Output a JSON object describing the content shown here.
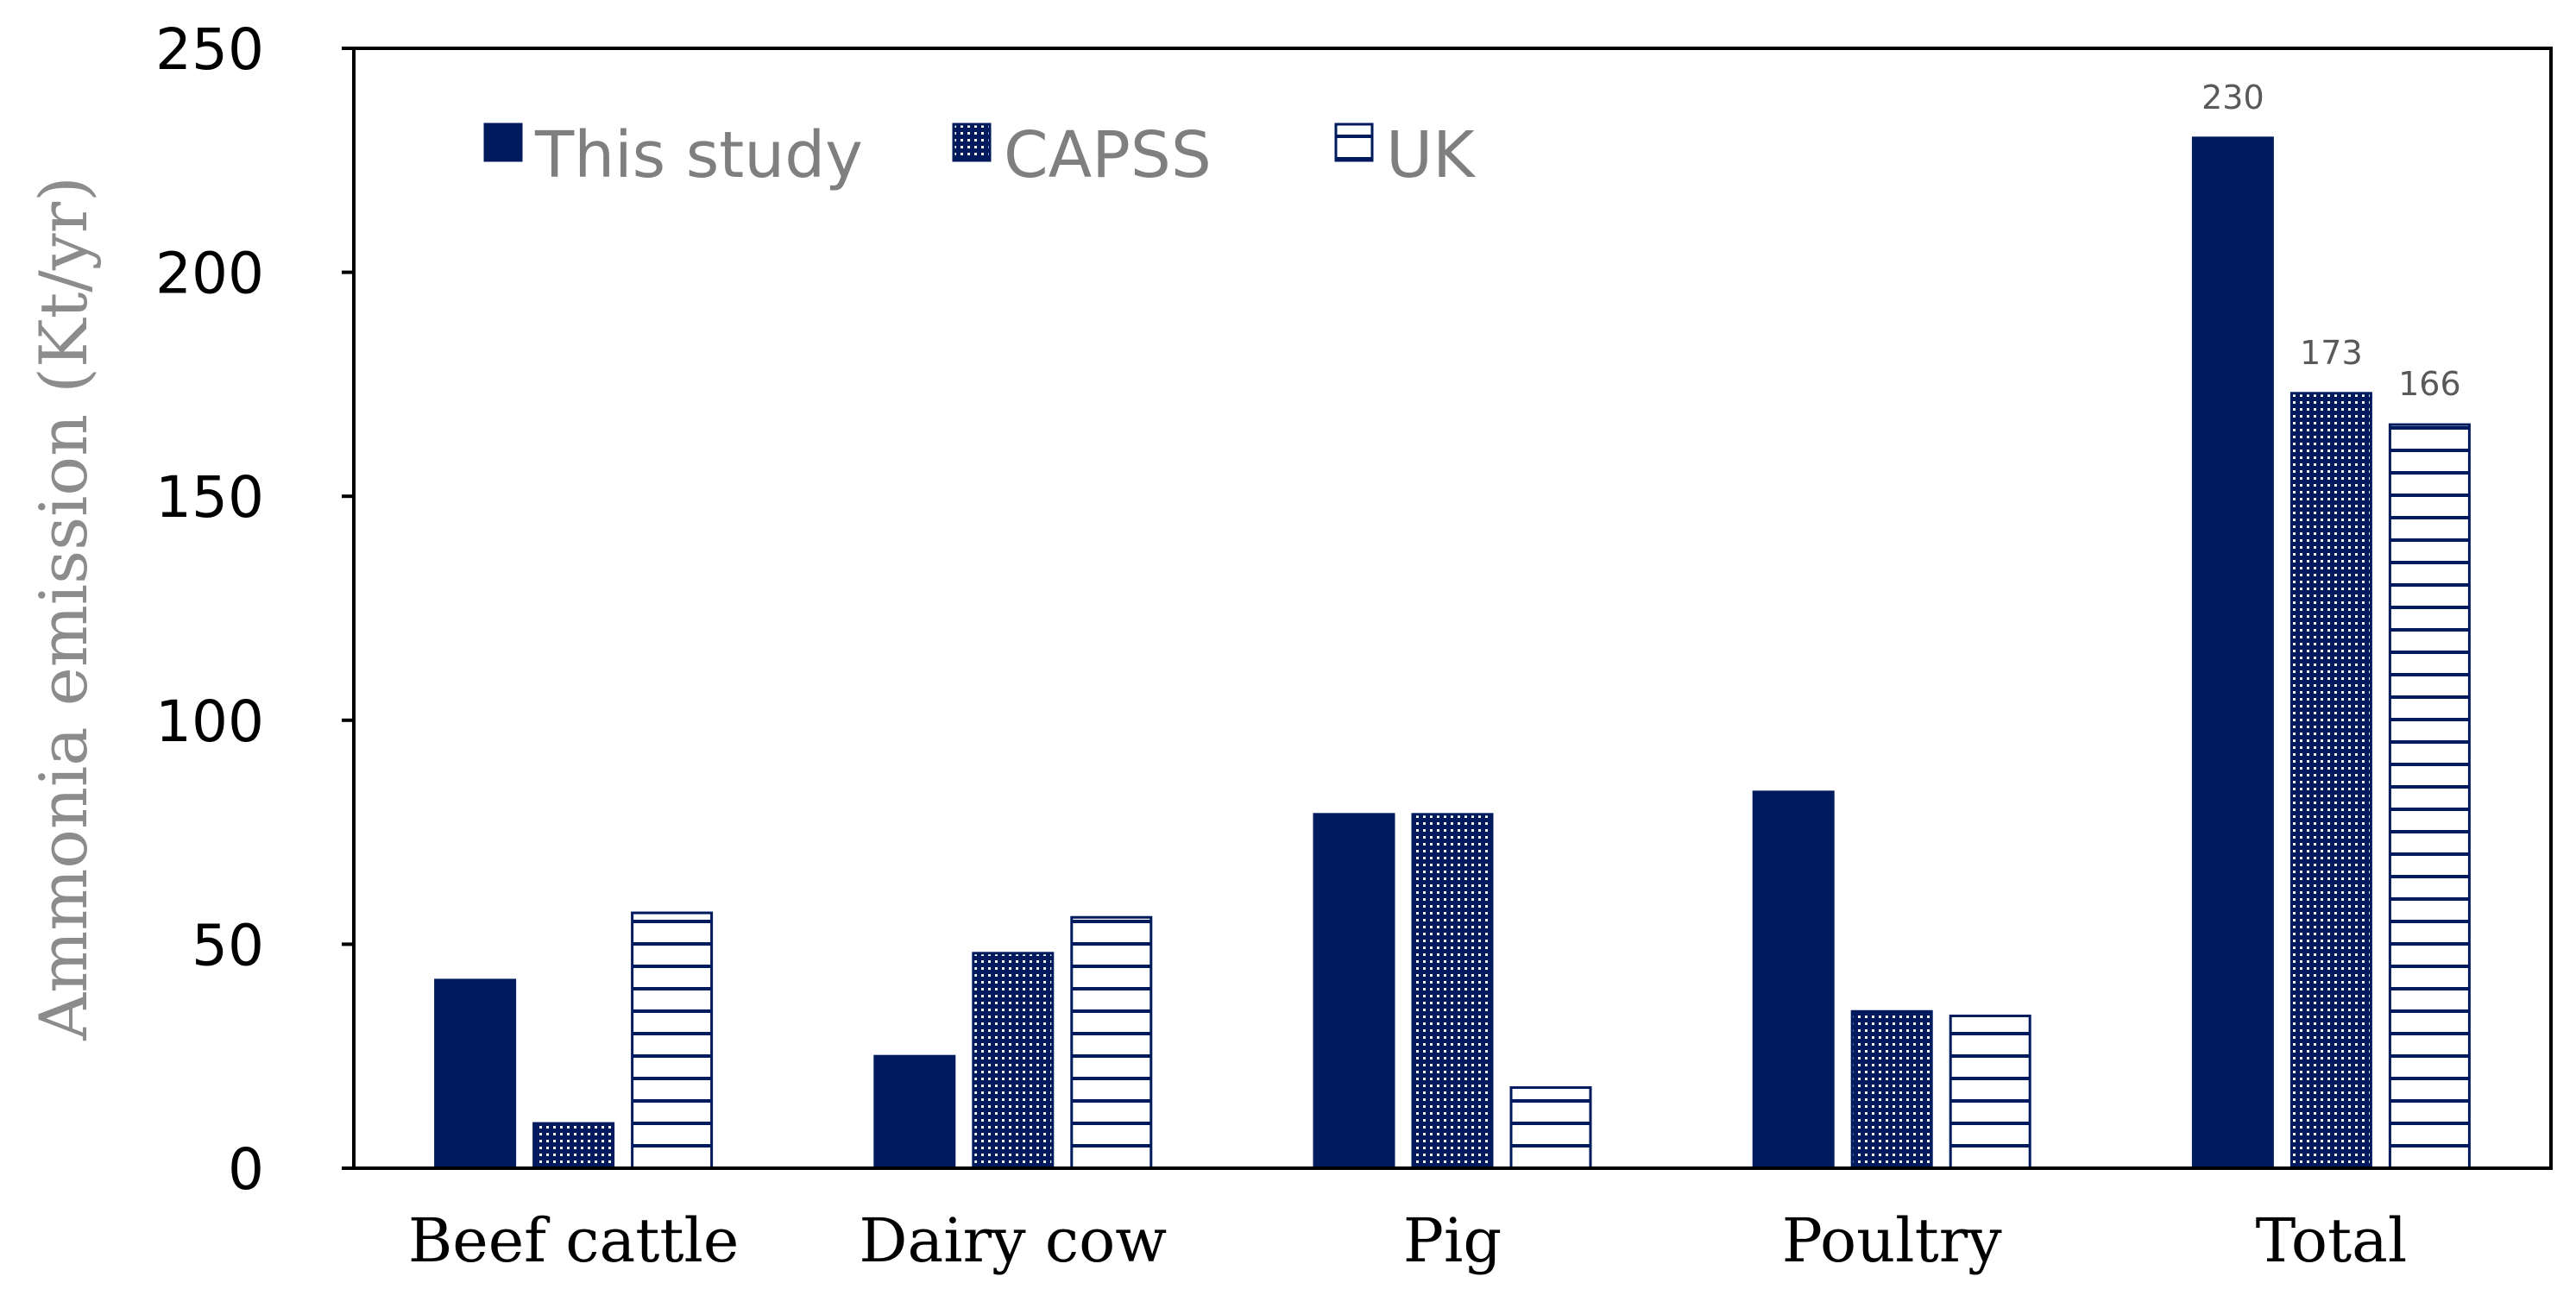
{
  "chart_data": {
    "type": "bar",
    "title": "",
    "xlabel": "",
    "ylabel": "Ammonia emission (Kt/yr)",
    "ylim": [
      0,
      250
    ],
    "yticks": [
      "0",
      "50",
      "100",
      "150",
      "200",
      "250"
    ],
    "categories": [
      "Beef cattle",
      "Dairy cow",
      "Pig",
      "Poultry",
      "Total"
    ],
    "series": [
      {
        "name": "This study",
        "pattern": "solid",
        "values": [
          42,
          25,
          79,
          84,
          230
        ]
      },
      {
        "name": "CAPSS",
        "pattern": "dots",
        "values": [
          10,
          48,
          79,
          35,
          173
        ]
      },
      {
        "name": "UK",
        "pattern": "hlines",
        "values": [
          57,
          56,
          18,
          34,
          166
        ]
      }
    ],
    "data_labels": [
      {
        "series": 0,
        "category": 4,
        "text": "230"
      },
      {
        "series": 1,
        "category": 4,
        "text": "173"
      },
      {
        "series": 2,
        "category": 4,
        "text": "166"
      }
    ],
    "legend_position": "top-left",
    "grid": false,
    "colors": {
      "bar": "#001a5e",
      "axis": "#000000"
    }
  }
}
